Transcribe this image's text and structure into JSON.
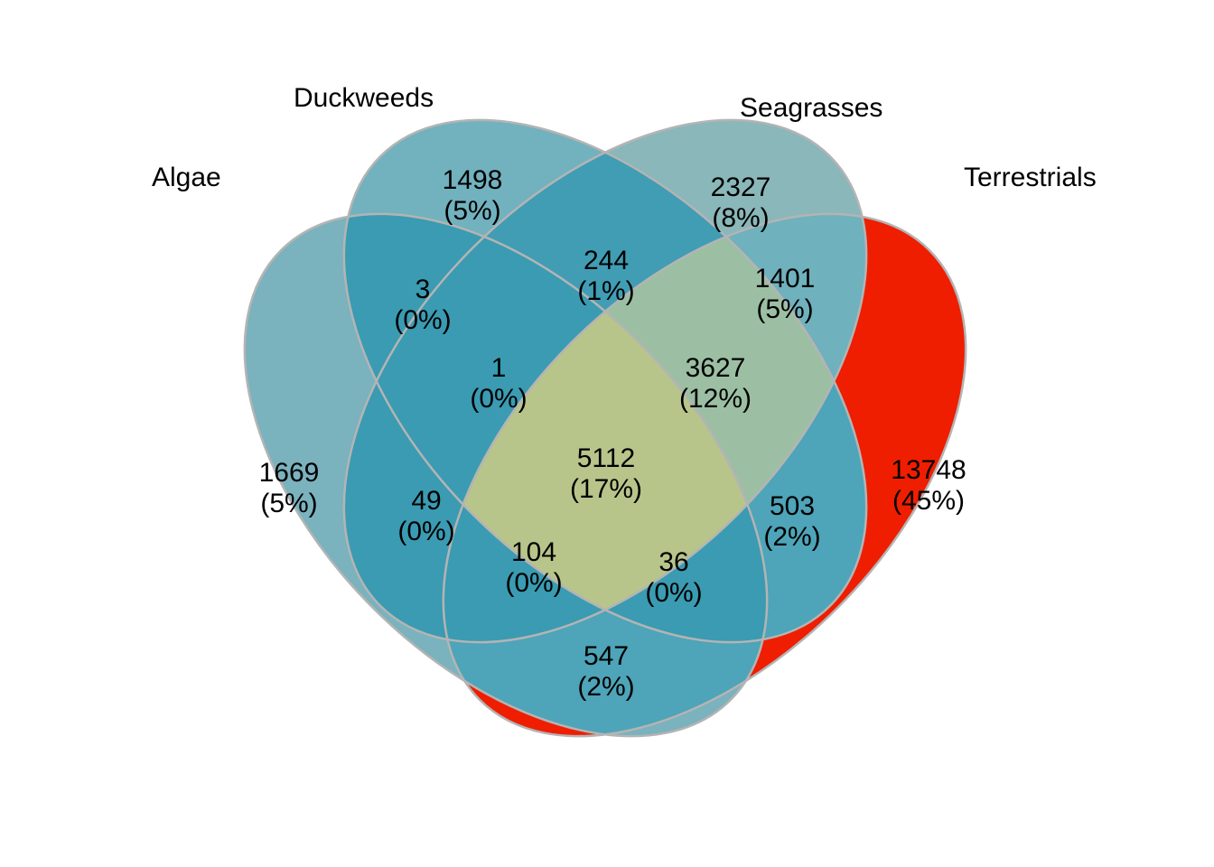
{
  "sets": [
    {
      "name": "Algae",
      "color": "#7ab2be"
    },
    {
      "name": "Duckweeds",
      "color": "#72b1be"
    },
    {
      "name": "Seagrasses",
      "color": "#8ab7b9"
    },
    {
      "name": "Terrestrials",
      "color": "#ef1e00"
    }
  ],
  "regions": [
    {
      "id": "A",
      "sets": [
        "Algae"
      ],
      "count": "1669",
      "percent": "(5%)",
      "color": "#7ab2be"
    },
    {
      "id": "D",
      "sets": [
        "Duckweeds"
      ],
      "count": "1498",
      "percent": "(5%)",
      "color": "#72b1be"
    },
    {
      "id": "S",
      "sets": [
        "Seagrasses"
      ],
      "count": "2327",
      "percent": "(8%)",
      "color": "#8ab7b9"
    },
    {
      "id": "T",
      "sets": [
        "Terrestrials"
      ],
      "count": "13748",
      "percent": "(45%)",
      "color": "#ef1e00"
    },
    {
      "id": "AD",
      "sets": [
        "Algae",
        "Duckweeds"
      ],
      "count": "3",
      "percent": "(0%)",
      "color": "#3a9bb2"
    },
    {
      "id": "DS",
      "sets": [
        "Duckweeds",
        "Seagrasses"
      ],
      "count": "244",
      "percent": "(1%)",
      "color": "#409db4"
    },
    {
      "id": "ST",
      "sets": [
        "Seagrasses",
        "Terrestrials"
      ],
      "count": "1401",
      "percent": "(5%)",
      "color": "#6fb1bd"
    },
    {
      "id": "AS",
      "sets": [
        "Algae",
        "Seagrasses"
      ],
      "count": "49",
      "percent": "(0%)",
      "color": "#3a9bb2"
    },
    {
      "id": "DT",
      "sets": [
        "Duckweeds",
        "Terrestrials"
      ],
      "count": "503",
      "percent": "(2%)",
      "color": "#4ea4b8"
    },
    {
      "id": "AT",
      "sets": [
        "Algae",
        "Terrestrials"
      ],
      "count": "547",
      "percent": "(2%)",
      "color": "#4ea4b8"
    },
    {
      "id": "ADS",
      "sets": [
        "Algae",
        "Duckweeds",
        "Seagrasses"
      ],
      "count": "1",
      "percent": "(0%)",
      "color": "#3a9bb2"
    },
    {
      "id": "DST",
      "sets": [
        "Duckweeds",
        "Seagrasses",
        "Terrestrials"
      ],
      "count": "3627",
      "percent": "(12%)",
      "color": "#9cbfa4"
    },
    {
      "id": "AST",
      "sets": [
        "Algae",
        "Seagrasses",
        "Terrestrials"
      ],
      "count": "104",
      "percent": "(0%)",
      "color": "#3a9bb2"
    },
    {
      "id": "ADT",
      "sets": [
        "Algae",
        "Duckweeds",
        "Terrestrials"
      ],
      "count": "36",
      "percent": "(0%)",
      "color": "#3a9bb2"
    },
    {
      "id": "ADST",
      "sets": [
        "Algae",
        "Duckweeds",
        "Seagrasses",
        "Terrestrials"
      ],
      "count": "5112",
      "percent": "(17%)",
      "color": "#b7c58b"
    }
  ],
  "outline_color": "#b4b4b4"
}
